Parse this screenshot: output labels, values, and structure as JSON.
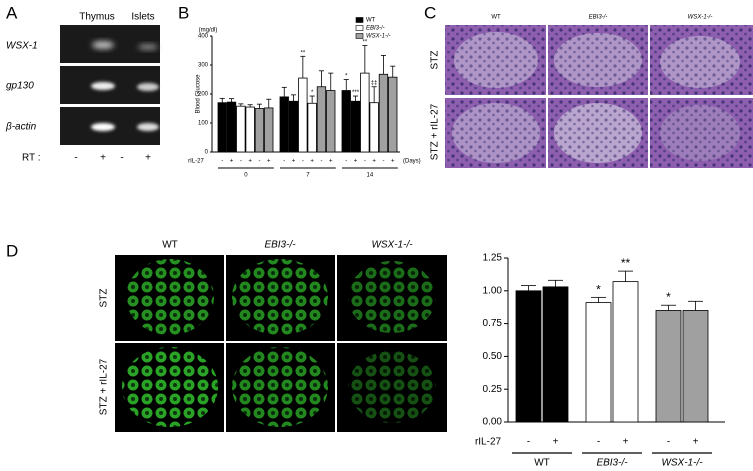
{
  "panel_labels": [
    "A",
    "B",
    "C",
    "D"
  ],
  "gel": {
    "lanes": [
      "Thymus",
      "Islets"
    ],
    "genes": [
      "WSX-1",
      "gp130",
      "β-actin"
    ],
    "rt_label": "RT :",
    "rt_signs": [
      "-",
      "+",
      "-",
      "+"
    ]
  },
  "histology": {
    "columns": [
      "WT",
      "EBI3-/-",
      "WSX-1-/-"
    ],
    "rows": [
      "STZ",
      "STZ + rIL-27"
    ]
  },
  "confocal": {
    "columns": [
      "WT",
      "EBI3-/-",
      "WSX-1-/-"
    ],
    "rows": [
      "STZ",
      "STZ + rIL-27"
    ]
  },
  "chart_data": [
    {
      "type": "bar",
      "y_label": "Blood Glucose",
      "y_unit": "(mg/dl)",
      "x_label": "rIL-27",
      "days": [
        "0",
        "7",
        "14"
      ],
      "days_label": "(Days)",
      "treatments": [
        "-",
        "+"
      ],
      "ylim": [
        0,
        400
      ],
      "yticks": [
        0,
        100,
        200,
        300,
        400
      ],
      "series": [
        {
          "name": "WT",
          "color": "#000000",
          "values": [
            170,
            172,
            190,
            175,
            212,
            175
          ],
          "errors": [
            15,
            12,
            33,
            22,
            38,
            18
          ],
          "annotations": [
            null,
            null,
            null,
            null,
            "*",
            "***"
          ]
        },
        {
          "name": "EBI3-/-",
          "color": "#ffffff",
          "values": [
            158,
            155,
            255,
            168,
            272,
            170
          ],
          "errors": [
            8,
            8,
            75,
            25,
            95,
            55
          ],
          "annotations": [
            null,
            null,
            "**",
            "*",
            "**",
            "‡‡"
          ]
        },
        {
          "name": "WSX-1-/-",
          "color": "#a0a0a0",
          "values": [
            150,
            152,
            225,
            212,
            268,
            258
          ],
          "errors": [
            15,
            30,
            55,
            60,
            65,
            38
          ],
          "annotations": [
            null,
            null,
            null,
            null,
            null,
            null
          ]
        }
      ]
    },
    {
      "type": "bar",
      "x_label": "rIL-27",
      "treatments": [
        "-",
        "+"
      ],
      "ylim": [
        0,
        1.25
      ],
      "yticks": [
        {
          "value": 0,
          "label": "0.00"
        },
        {
          "value": 0.25,
          "label": "0.25"
        },
        {
          "value": 0.5,
          "label": "0.50"
        },
        {
          "value": 0.75,
          "label": "0.75"
        },
        {
          "value": 1,
          "label": "1.00"
        },
        {
          "value": 1.25,
          "label": "1.25"
        }
      ],
      "series": [
        {
          "name": "WT",
          "color": "#000000",
          "values": [
            1.0,
            1.03
          ],
          "errors": [
            0.04,
            0.05
          ],
          "annotations": [
            null,
            null
          ]
        },
        {
          "name": "EBI3-/-",
          "color": "#ffffff",
          "values": [
            0.91,
            1.07
          ],
          "errors": [
            0.04,
            0.08
          ],
          "annotations": [
            "*",
            "**"
          ]
        },
        {
          "name": "WSX-1-/-",
          "color": "#a0a0a0",
          "values": [
            0.85,
            0.85
          ],
          "errors": [
            0.04,
            0.07
          ],
          "annotations": [
            "*",
            null
          ]
        }
      ]
    }
  ]
}
